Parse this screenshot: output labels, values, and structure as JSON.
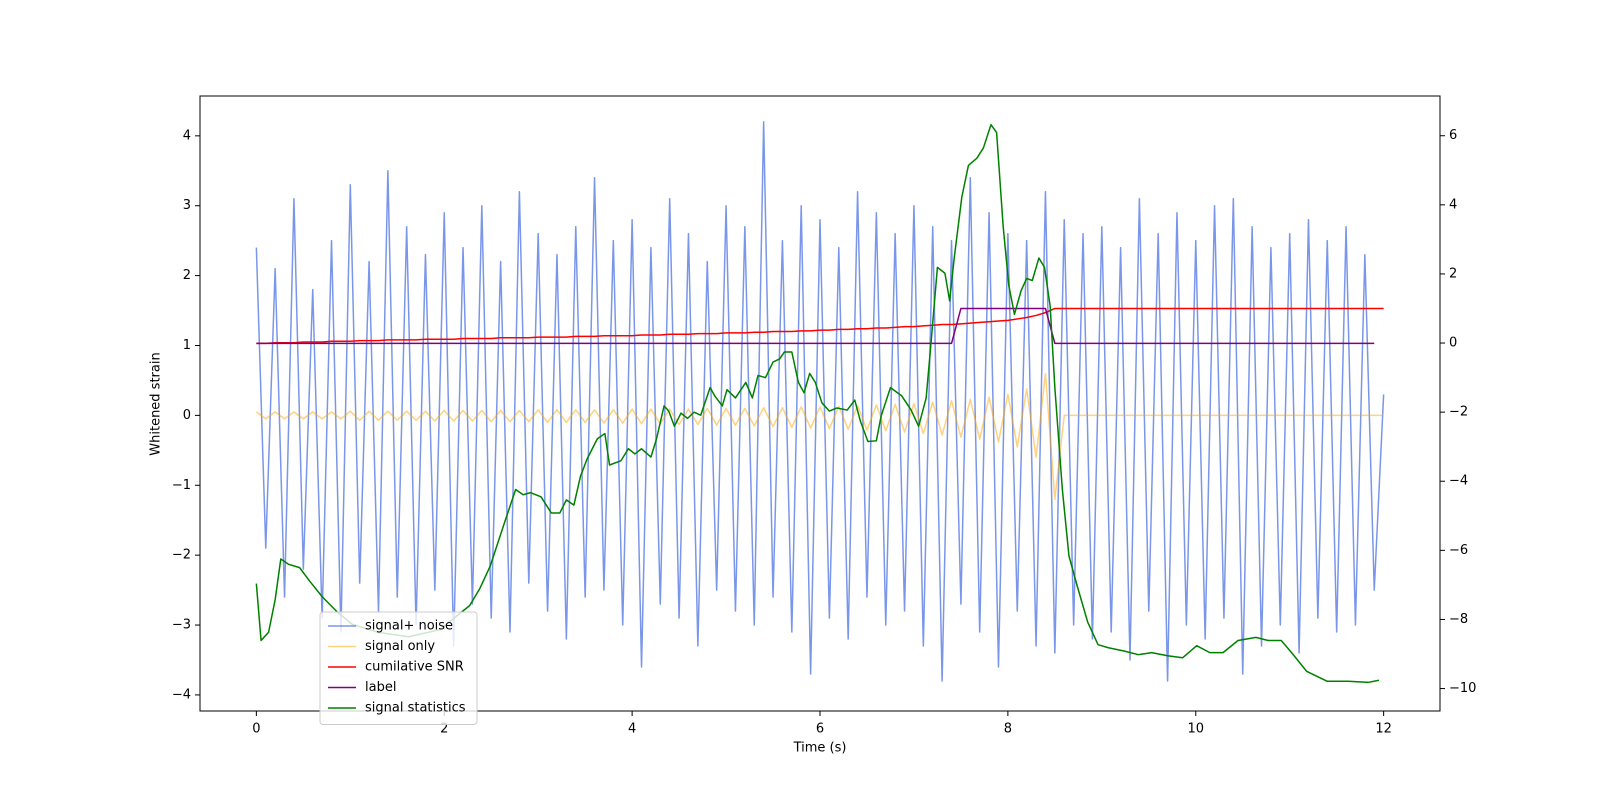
{
  "chart_data": {
    "type": "line",
    "xlabel": "Time (s)",
    "ylabel": "Whitened strain",
    "xlim": [
      -0.6,
      12.6
    ],
    "ylim": [
      -4.23,
      4.57
    ],
    "y2lim": [
      -10.65,
      7.15
    ],
    "xticks": [
      0,
      2,
      4,
      6,
      8,
      10,
      12
    ],
    "yticks": [
      {
        "value": -4,
        "label": "−4"
      },
      {
        "value": -3,
        "label": "−3"
      },
      {
        "value": -2,
        "label": "−2"
      },
      {
        "value": -1,
        "label": "−1"
      },
      0,
      1,
      2,
      3,
      4
    ],
    "y2ticks": [
      {
        "value": -10,
        "label": "−10"
      },
      {
        "value": -8,
        "label": "−8"
      },
      {
        "value": -6,
        "label": "−6"
      },
      {
        "value": -4,
        "label": "−4"
      },
      {
        "value": -2,
        "label": "−2"
      },
      0,
      2,
      4,
      6
    ],
    "legend": "lower left",
    "x": [
      0,
      0.1,
      0.2,
      0.3,
      0.4,
      0.5,
      0.6,
      0.7,
      0.8,
      0.9,
      1,
      1.1,
      1.2,
      1.3,
      1.4,
      1.5,
      1.6,
      1.7,
      1.8,
      1.9,
      2,
      2.1,
      2.2,
      2.3,
      2.4,
      2.5,
      2.6,
      2.7,
      2.8,
      2.9,
      3,
      3.1,
      3.2,
      3.3,
      3.4,
      3.5,
      3.6,
      3.7,
      3.8,
      3.9,
      4,
      4.1,
      4.2,
      4.3,
      4.4,
      4.5,
      4.6,
      4.7,
      4.8,
      4.9,
      5,
      5.1,
      5.2,
      5.3,
      5.4,
      5.5,
      5.6,
      5.7,
      5.8,
      5.9,
      6,
      6.1,
      6.2,
      6.3,
      6.4,
      6.5,
      6.6,
      6.7,
      6.8,
      6.9,
      7,
      7.1,
      7.2,
      7.3,
      7.4,
      7.5,
      7.6,
      7.7,
      7.8,
      7.9,
      8,
      8.1,
      8.2,
      8.3,
      8.4,
      8.5,
      8.6,
      8.7,
      8.8,
      8.9,
      9,
      9.1,
      9.2,
      9.3,
      9.4,
      9.5,
      9.6,
      9.7,
      9.8,
      9.9,
      10,
      10.1,
      10.2,
      10.3,
      10.4,
      10.5,
      10.6,
      10.7,
      10.8,
      10.9,
      11,
      11.1,
      11.2,
      11.3,
      11.4,
      11.5,
      11.6,
      11.7,
      11.8,
      11.9,
      12
    ],
    "series": [
      {
        "name": "signal+ noise",
        "color": "#4169e1",
        "opacity": 0.7,
        "values": [
          2.4,
          -1.9,
          2.1,
          -2.6,
          3.1,
          -2.2,
          1.8,
          -2.9,
          2.5,
          -3.1,
          3.3,
          -2.4,
          2.2,
          -2.8,
          3.5,
          -2.6,
          2.7,
          -3.0,
          2.3,
          -2.5,
          2.9,
          -3.3,
          2.4,
          -2.7,
          3.0,
          -2.9,
          2.2,
          -3.1,
          3.2,
          -2.4,
          2.6,
          -2.8,
          2.3,
          -3.2,
          2.7,
          -2.6,
          3.4,
          -2.5,
          2.5,
          -3.0,
          2.8,
          -3.6,
          2.4,
          -2.7,
          3.1,
          -2.9,
          2.6,
          -3.3,
          2.2,
          -2.5,
          3.0,
          -2.8,
          2.7,
          -3.0,
          4.2,
          -2.6,
          2.5,
          -3.1,
          3.0,
          -3.7,
          2.8,
          -2.9,
          2.4,
          -3.2,
          3.2,
          -2.6,
          2.9,
          -3.0,
          2.6,
          -2.8,
          3.0,
          -3.3,
          2.7,
          -3.8,
          2.5,
          -2.7,
          3.4,
          -3.1,
          2.9,
          -3.6,
          2.6,
          -2.8,
          2.5,
          -3.3,
          3.2,
          -3.4,
          2.8,
          -3.0,
          2.6,
          -3.2,
          2.7,
          -3.1,
          2.4,
          -3.5,
          3.1,
          -2.8,
          2.6,
          -3.8,
          2.9,
          -3.0,
          2.5,
          -3.2,
          3.0,
          -2.9,
          3.1,
          -3.7,
          2.7,
          -3.3,
          2.4,
          -3.0,
          2.6,
          -3.4,
          2.8,
          -2.9,
          2.5,
          -3.1,
          2.7,
          -3.0,
          2.3,
          -2.5,
          0.3
        ]
      },
      {
        "name": "signal only",
        "color": "#ffa500",
        "opacity": 0.5,
        "values": [
          0.05,
          -0.05,
          0.05,
          -0.05,
          0.05,
          -0.05,
          0.05,
          -0.05,
          0.05,
          -0.05,
          0.06,
          -0.07,
          0.06,
          -0.07,
          0.06,
          -0.07,
          0.06,
          -0.07,
          0.06,
          -0.08,
          0.07,
          -0.08,
          0.07,
          -0.08,
          0.07,
          -0.09,
          0.07,
          -0.09,
          0.07,
          -0.09,
          0.08,
          -0.1,
          0.08,
          -0.1,
          0.08,
          -0.1,
          0.08,
          -0.11,
          0.08,
          -0.11,
          0.09,
          -0.12,
          0.09,
          -0.12,
          0.09,
          -0.13,
          0.09,
          -0.13,
          0.1,
          -0.14,
          0.1,
          -0.14,
          0.1,
          -0.15,
          0.11,
          -0.16,
          0.11,
          -0.17,
          0.12,
          -0.18,
          0.12,
          -0.19,
          0.13,
          -0.2,
          0.14,
          -0.21,
          0.15,
          -0.22,
          0.16,
          -0.24,
          0.17,
          -0.26,
          0.19,
          -0.28,
          0.21,
          -0.31,
          0.23,
          -0.34,
          0.26,
          -0.38,
          0.3,
          -0.45,
          0.38,
          -0.6,
          0.6,
          -1.2,
          0,
          0,
          0,
          0,
          0,
          0,
          0,
          0,
          0,
          0,
          0,
          0,
          0,
          0,
          0,
          0,
          0,
          0,
          0,
          0,
          0,
          0,
          0,
          0,
          0,
          0,
          0,
          0,
          0,
          0,
          0,
          0,
          0,
          0,
          0
        ]
      },
      {
        "name": "cumilative SNR",
        "color": "#ff0000",
        "opacity": 1,
        "values": [
          1.03,
          1.03,
          1.04,
          1.04,
          1.04,
          1.05,
          1.05,
          1.05,
          1.06,
          1.06,
          1.06,
          1.07,
          1.07,
          1.07,
          1.08,
          1.08,
          1.08,
          1.08,
          1.09,
          1.09,
          1.09,
          1.09,
          1.1,
          1.1,
          1.1,
          1.1,
          1.11,
          1.11,
          1.11,
          1.11,
          1.12,
          1.12,
          1.12,
          1.12,
          1.13,
          1.13,
          1.13,
          1.14,
          1.14,
          1.14,
          1.14,
          1.15,
          1.15,
          1.15,
          1.16,
          1.16,
          1.16,
          1.17,
          1.17,
          1.17,
          1.18,
          1.18,
          1.18,
          1.19,
          1.19,
          1.2,
          1.2,
          1.2,
          1.21,
          1.21,
          1.22,
          1.22,
          1.23,
          1.23,
          1.24,
          1.24,
          1.25,
          1.25,
          1.26,
          1.27,
          1.27,
          1.28,
          1.29,
          1.3,
          1.3,
          1.31,
          1.32,
          1.33,
          1.34,
          1.35,
          1.36,
          1.38,
          1.4,
          1.43,
          1.47,
          1.53,
          1.53,
          1.53,
          1.53,
          1.53,
          1.53,
          1.53,
          1.53,
          1.53,
          1.53,
          1.53,
          1.53,
          1.53,
          1.53,
          1.53,
          1.53,
          1.53,
          1.53,
          1.53,
          1.53,
          1.53,
          1.53,
          1.53,
          1.53,
          1.53,
          1.53,
          1.53,
          1.53,
          1.53,
          1.53,
          1.53,
          1.53,
          1.53,
          1.53,
          1.53,
          1.53
        ]
      },
      {
        "name": "label",
        "color": "#800080",
        "opacity": 1,
        "values": [
          1.03,
          1.03,
          1.03,
          1.03,
          1.03,
          1.03,
          1.03,
          1.03,
          1.03,
          1.03,
          1.03,
          1.03,
          1.03,
          1.03,
          1.03,
          1.03,
          1.03,
          1.03,
          1.03,
          1.03,
          1.03,
          1.03,
          1.03,
          1.03,
          1.03,
          1.03,
          1.03,
          1.03,
          1.03,
          1.03,
          1.03,
          1.03,
          1.03,
          1.03,
          1.03,
          1.03,
          1.03,
          1.03,
          1.03,
          1.03,
          1.03,
          1.03,
          1.03,
          1.03,
          1.03,
          1.03,
          1.03,
          1.03,
          1.03,
          1.03,
          1.03,
          1.03,
          1.03,
          1.03,
          1.03,
          1.03,
          1.03,
          1.03,
          1.03,
          1.03,
          1.03,
          1.03,
          1.03,
          1.03,
          1.03,
          1.03,
          1.03,
          1.03,
          1.03,
          1.03,
          1.03,
          1.03,
          1.03,
          1.03,
          1.03,
          1.53,
          1.53,
          1.53,
          1.53,
          1.53,
          1.53,
          1.53,
          1.53,
          1.53,
          1.53,
          1.03,
          1.03,
          1.03,
          1.03,
          1.03,
          1.03,
          1.03,
          1.03,
          1.03,
          1.03,
          1.03,
          1.03,
          1.03,
          1.03,
          1.03,
          1.03,
          1.03,
          1.03,
          1.03,
          1.03,
          1.03,
          1.03,
          1.03,
          1.03,
          1.03,
          1.03,
          1.03,
          1.03,
          1.03,
          1.03,
          1.03,
          1.03,
          1.03,
          1.03,
          1.03,
          null
        ]
      },
      {
        "name": "signal statistics",
        "color": "#008000",
        "opacity": 1,
        "axis": "y2",
        "x": [
          0,
          0.05,
          0.13,
          0.2,
          0.26,
          0.34,
          0.46,
          0.57,
          0.7,
          0.86,
          1.02,
          1.29,
          1.62,
          1.95,
          2.27,
          2.38,
          2.49,
          2.65,
          2.76,
          2.84,
          2.92,
          3.03,
          3.14,
          3.23,
          3.3,
          3.38,
          3.45,
          3.52,
          3.63,
          3.71,
          3.76,
          3.88,
          3.96,
          4.03,
          4.1,
          4.2,
          4.26,
          4.34,
          4.39,
          4.45,
          4.52,
          4.59,
          4.66,
          4.73,
          4.83,
          4.88,
          4.96,
          5.01,
          5.1,
          5.21,
          5.28,
          5.34,
          5.42,
          5.5,
          5.57,
          5.62,
          5.7,
          5.77,
          5.83,
          5.89,
          5.95,
          6.02,
          6.1,
          6.18,
          6.29,
          6.37,
          6.43,
          6.51,
          6.6,
          6.65,
          6.75,
          6.87,
          6.97,
          7.05,
          7.13,
          7.18,
          7.25,
          7.33,
          7.38,
          7.43,
          7.51,
          7.58,
          7.67,
          7.74,
          7.82,
          7.88,
          7.95,
          8.01,
          8.07,
          8.14,
          8.2,
          8.26,
          8.33,
          8.39,
          8.45,
          8.5,
          8.58,
          8.65,
          8.74,
          8.85,
          8.96,
          9.07,
          9.23,
          9.39,
          9.53,
          9.7,
          9.86,
          10.01,
          10.15,
          10.29,
          10.45,
          10.64,
          10.77,
          10.91,
          11.02,
          11.18,
          11.4,
          11.62,
          11.84,
          11.95
        ],
        "values": [
          -6.96,
          -8.61,
          -8.37,
          -7.43,
          -6.25,
          -6.4,
          -6.5,
          -6.9,
          -7.34,
          -7.78,
          -8.14,
          -8.37,
          -8.5,
          -8.3,
          -7.6,
          -7.1,
          -6.45,
          -5.13,
          -4.24,
          -4.39,
          -4.33,
          -4.45,
          -4.92,
          -4.92,
          -4.54,
          -4.69,
          -3.86,
          -3.36,
          -2.77,
          -2.62,
          -3.53,
          -3.41,
          -3.06,
          -3.21,
          -3.06,
          -3.3,
          -2.77,
          -1.82,
          -1.97,
          -2.41,
          -2.03,
          -2.18,
          -2.0,
          -2.09,
          -1.29,
          -1.53,
          -1.82,
          -1.35,
          -1.59,
          -1.14,
          -1.59,
          -0.94,
          -1.0,
          -0.55,
          -0.46,
          -0.26,
          -0.26,
          -1.14,
          -1.44,
          -0.88,
          -1.14,
          -1.73,
          -1.97,
          -1.88,
          -1.94,
          -1.65,
          -2.26,
          -2.85,
          -2.83,
          -2.12,
          -1.29,
          -1.53,
          -1.94,
          -2.41,
          -1.59,
          -0.05,
          2.19,
          2.02,
          1.22,
          2.49,
          4.23,
          5.14,
          5.35,
          5.65,
          6.32,
          6.09,
          3.37,
          1.66,
          0.83,
          1.51,
          1.87,
          1.81,
          2.46,
          2.19,
          1.07,
          -1.29,
          -4.24,
          -6.16,
          -7.05,
          -8.08,
          -8.73,
          -8.82,
          -8.91,
          -9.02,
          -8.96,
          -9.05,
          -9.11,
          -8.76,
          -8.96,
          -8.96,
          -8.61,
          -8.52,
          -8.61,
          -8.61,
          -8.96,
          -9.5,
          -9.79,
          -9.79,
          -9.82,
          -9.76
        ]
      }
    ]
  }
}
